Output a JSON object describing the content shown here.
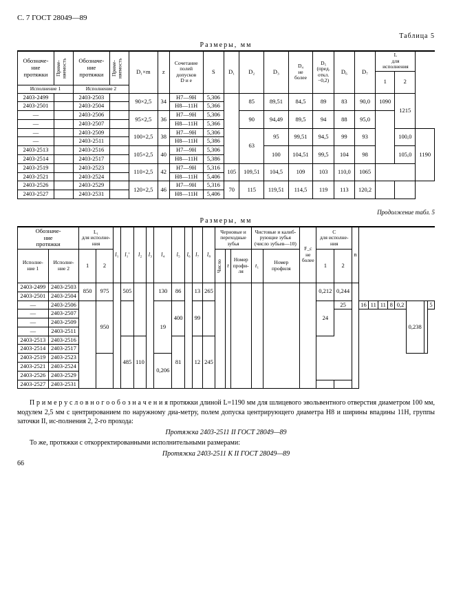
{
  "header": "С. 7 ГОСТ 28049—89",
  "tableLabel5": "Таблица 5",
  "caption": "Размеры,  мм",
  "contLabel": "Продолжение табл. 5",
  "h": {
    "obozn": "Обозначе-\nние\nпротяжки",
    "prim": "Приме-\nняемость",
    "isp1": "Исполнение 1",
    "isp2": "Исполнение 2",
    "Dm": "D₁×m",
    "z": "z",
    "soch": "Сочетание\nполей\nдопусков\nD и e",
    "S": "S",
    "D1": "D₁",
    "D2": "D₂",
    "D3": "D₃",
    "D4": "D₄\nне\nболее",
    "D5": "D₅\n(пред.\nоткл.\n−0,2)",
    "D6": "D₆",
    "D7": "D₇",
    "Lfor": "L\nдля\nисполнения",
    "n1": "1",
    "n2": "2",
    "L1for": "L₁\nдля исполне-\nния",
    "cher": "Черновые и\nпереходные\nзубья",
    "chisl": "Число",
    "tnom": "Номер\nпрофи-\nля",
    "chist": "Чистовые и калиб-\nрующие зубья\n(число зубьев—10)",
    "Fc": "F_c\nне\nболее",
    "Cfor": "C\nдля исполне-\nния",
    "n": "n"
  },
  "t1rows": [
    {
      "a1": "2403-2499",
      "a2": "2403-2503",
      "dm": "90×2,5",
      "z": "34",
      "soch": "H7—9H",
      "s": "5,306",
      "d1": "",
      "d2": "85",
      "d3": "89,51",
      "d4": "84,5",
      "d5": "89",
      "d6": "83",
      "d7": "90,0",
      "l1": "1090",
      "l2": "1215",
      "dmr": 2,
      "zr": 2,
      "d1r": 8,
      "d2r": 2,
      "d3r": 2,
      "d4r": 2,
      "d5r": 2,
      "d6r": 2,
      "d7r": 2,
      "l1r": 2,
      "l2r": 4
    },
    {
      "a1": "2403-2501",
      "a2": "2403-2504",
      "soch": "H8—11H",
      "s": "5,366"
    },
    {
      "a1": "—",
      "a2": "2403-2506",
      "dm": "95×2,5",
      "z": "36",
      "soch": "H7—9H",
      "s": "5,306",
      "d2": "90",
      "d3": "94,49",
      "d4": "89,5",
      "d5": "94",
      "d6": "88",
      "d7": "95,0",
      "l1": "",
      "dmr": 2,
      "zr": 2,
      "d2r": 2,
      "d3r": 2,
      "d4r": 2,
      "d5r": 2,
      "d6r": 2,
      "d7r": 2,
      "l1r": 6
    },
    {
      "a1": "—",
      "a2": "2403-2507",
      "soch": "H8—11H",
      "s": "5,366"
    },
    {
      "a1": "—",
      "a2": "2403-2509",
      "dm": "100×2,5",
      "z": "38",
      "soch": "H7—9H",
      "s": "5,306",
      "d1": "63",
      "d2": "95",
      "d3": "99,51",
      "d4": "94,5",
      "d5": "99",
      "d6": "93",
      "d7": "100,0",
      "l2": "1190",
      "dmr": 2,
      "zr": 2,
      "d1r": 4,
      "d2r": 2,
      "d3r": 2,
      "d4r": 2,
      "d5r": 2,
      "d6r": 2,
      "d7r": 2,
      "l2r": 6
    },
    {
      "a1": "—",
      "a2": "2403-2511",
      "soch": "H8—11H",
      "s": "5,386"
    },
    {
      "a1": "2403-2513",
      "a2": "2403-2516",
      "dm": "105×2,5",
      "z": "40",
      "soch": "H7—9H",
      "s": "5,306",
      "d2": "100",
      "d3": "104,51",
      "d4": "99,5",
      "d5": "104",
      "d6": "98",
      "d7": "105,0",
      "dmr": 2,
      "zr": 2,
      "d2r": 2,
      "d3r": 2,
      "d4r": 2,
      "d5r": 2,
      "d6r": 2,
      "d7r": 2
    },
    {
      "a1": "2403-2514",
      "a2": "2403-2517",
      "soch": "H8—11H",
      "s": "5,386"
    },
    {
      "a1": "2403-2519",
      "a2": "2403-2523",
      "dm": "110×2,5",
      "z": "42",
      "soch": "H7—9H",
      "s": "5,316",
      "d2": "105",
      "d3": "109,51",
      "d4": "104,5",
      "d5": "109",
      "d6": "103",
      "d7": "110,0",
      "l1": "1065",
      "dmr": 2,
      "zr": 2,
      "d2r": 2,
      "d3r": 2,
      "d4r": 2,
      "d5r": 2,
      "d6r": 2,
      "d7r": 2,
      "l1r": 2
    },
    {
      "a1": "2403-2521",
      "a2": "2403-2524",
      "soch": "H8—11H",
      "s": "5,406"
    },
    {
      "a1": "2403-2526",
      "a2": "2403-2529",
      "dm": "120×2,5",
      "z": "46",
      "soch": "H7—9H",
      "s": "5,316",
      "d1": "70",
      "d2": "115",
      "d3": "119,51",
      "d4": "114,5",
      "d5": "119",
      "d6": "113",
      "d7": "120,2",
      "l1": "",
      "l2": "",
      "dmr": 2,
      "zr": 2,
      "d1r": 2,
      "d2r": 2,
      "d3r": 2,
      "d4r": 2,
      "d5r": 2,
      "d6r": 2,
      "d7r": 2,
      "l1r": 2,
      "l2r": 2
    },
    {
      "a1": "2403-2527",
      "a2": "2403-2531",
      "soch": "H8—11H",
      "s": "5,406"
    }
  ],
  "t2rows": [
    {
      "a1": "2403-2499",
      "a2": "2403-2503",
      "L1a": "850",
      "L1b": "975",
      "l1": "",
      "l1x": "505",
      "l2": "",
      "l3": "",
      "l4": "130",
      "l5": "86",
      "l6": "",
      "l7": "13",
      "l8": "265",
      "ch": "",
      "t": "",
      "nprof": "",
      "t1": "",
      "nprof1": "",
      "fc": "",
      "c1": "0,212",
      "c2": "0,244",
      "n": "",
      "L1ar": 2,
      "L1br": 2,
      "l1r": 12,
      "l1xr": 2,
      "l2r": 6,
      "l3r": 12,
      "l4r": 2,
      "l5r": 2,
      "l6r": 12,
      "l7r": 2,
      "l8r": 2,
      "chr": 12,
      "tr": 12,
      "nprofr": 12,
      "t1r": 12,
      "nprof1r": 12,
      "fcr": 12,
      "c1r": 2,
      "c2r": 2,
      "nr": 12
    },
    {
      "a1": "2403-2501",
      "a2": "2403-2504"
    },
    {
      "a1": "—",
      "a2": "2403-2506",
      "L1a": "",
      "L1b": "950",
      "l1x": "",
      "l2": "19",
      "l4": "400",
      "l5": "99",
      "l7": "",
      "l8": "24",
      "ch": "25",
      "t": "16",
      "nprof": "11",
      "t1": "11",
      "nprof1": "8",
      "fc": "0,2",
      "c1": "0,238",
      "c2": "",
      "n": "5",
      "L1ar": 10,
      "L1br": 6,
      "l1xr": 4,
      "l2r": 6,
      "l4r": 4,
      "l5r": 4,
      "l7r": 4,
      "l8r": 4,
      "c1r": 6,
      "c2r": 6
    },
    {
      "a1": "—",
      "a2": "2403-2507"
    },
    {
      "a1": "—",
      "a2": "2403-2509"
    },
    {
      "a1": "—",
      "a2": "2403-2511"
    },
    {
      "a1": "2403-2513",
      "a2": "2403-2516",
      "l1x": "485",
      "l4": "110",
      "l5": "81",
      "l7": "12",
      "l8": "245",
      "l1xr": 6,
      "l4r": 6,
      "l5r": 6,
      "l7r": 6,
      "l8r": 6
    },
    {
      "a1": "2403-2514",
      "a2": "2403-2517"
    },
    {
      "a1": "2403-2519",
      "a2": "2403-2523",
      "L1b": "",
      "c1": "0,206",
      "L1br": 4,
      "c1r": 4
    },
    {
      "a1": "2403-2521",
      "a2": "2403-2524"
    },
    {
      "a1": "2403-2526",
      "a2": "2403-2529"
    },
    {
      "a1": "2403-2527",
      "a2": "2403-2531",
      "L1a": "",
      "l2": "",
      "L1ar": 1,
      "l2r": 1
    }
  ],
  "footer": {
    "p1a": "П р и м е р   у с л о в н о г о   о б о з н а ч е н и я   протяжки  длиной  L=1190  мм   для   шлицевого эвольвентного отверстия диаметром 100 мм, модулем  2,5 мм с центрированием по  наружному диа-метру, полем допуска центрирующего диаметра H8 и ширины впадины 11H, группы заточки II, ис-полнения 2, 2-го прохода:",
    "p1b": "Протяжка 2403-2511 II ГОСТ 28049—89",
    "p2a": "То же, протяжки с  откорректированными исполнительными размерами:",
    "p2b": "Протяжка 2403-2511 К II ГОСТ 28049—89"
  },
  "pagenum": "66"
}
